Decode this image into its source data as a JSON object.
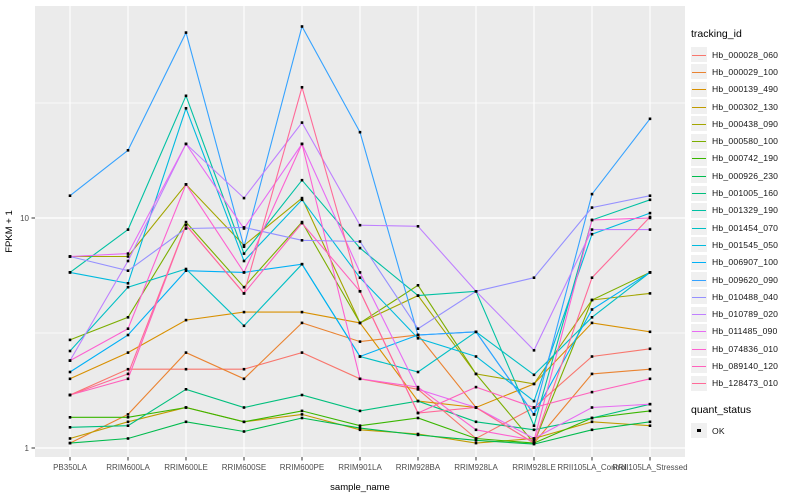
{
  "figure": {
    "background": "#FFFFFF",
    "panel_background": "#EBEBEB",
    "grid_color": "#FFFFFF",
    "axis_text_color": "#4D4D4D",
    "tick_mark_color": "#333333",
    "legend_key_background": "#F0F0F0"
  },
  "chart_data": {
    "type": "line",
    "title": "",
    "xlabel": "sample_name",
    "ylabel": "FPKM + 1",
    "y_scale": "log10",
    "grid": true,
    "legend_position": "right",
    "y_ticks": [
      {
        "label": "10",
        "value": 10
      },
      {
        "label": "1",
        "value": 1
      }
    ],
    "y_minor_values": [
      31.62,
      3.162
    ],
    "ylim": [
      0.91,
      83.5
    ],
    "categories": [
      "PB350LA",
      "RRIM600LA",
      "RRIM600LE",
      "RRIM600SE",
      "RRIM600PE",
      "RRIM901LA",
      "RRIM928BA",
      "RRIM928LA",
      "RRIM928LE",
      "RRII105LA_Control",
      "RRII105LA_Stressed"
    ],
    "points": {
      "shape": "square",
      "color": "#000000",
      "size": 2.6
    },
    "legend": {
      "title": "tracking_id"
    },
    "quant_legend": {
      "title": "quant_status",
      "items": [
        "OK"
      ],
      "marker_color": "#000000"
    },
    "series": [
      {
        "name": "Hb_000028_060",
        "color": "#F8766D",
        "values": [
          1.7,
          2.2,
          2.2,
          2.2,
          2.6,
          2.0,
          1.8,
          1.1,
          1.5,
          2.5,
          2.7
        ]
      },
      {
        "name": "Hb_000029_100",
        "color": "#EA8331",
        "values": [
          1.05,
          1.4,
          2.6,
          2.0,
          3.5,
          2.9,
          3.1,
          1.5,
          1.05,
          2.1,
          2.2
        ]
      },
      {
        "name": "Hb_000139_490",
        "color": "#D89000",
        "values": [
          2.0,
          2.6,
          3.6,
          3.9,
          3.9,
          3.5,
          1.6,
          1.5,
          1.9,
          3.5,
          3.2
        ]
      },
      {
        "name": "Hb_000302_130",
        "color": "#C09B00",
        "values": [
          1.1,
          1.3,
          1.5,
          1.3,
          1.4,
          1.2,
          1.15,
          1.05,
          1.1,
          1.3,
          1.25
        ]
      },
      {
        "name": "Hb_000438_090",
        "color": "#A3A500",
        "values": [
          6.8,
          6.8,
          14.0,
          7.6,
          12.2,
          3.5,
          4.6,
          2.1,
          1.9,
          4.4,
          4.7
        ]
      },
      {
        "name": "Hb_000580_100",
        "color": "#7CAE00",
        "values": [
          2.95,
          3.7,
          9.6,
          5.0,
          9.6,
          3.5,
          5.1,
          2.1,
          1.05,
          4.4,
          5.8
        ]
      },
      {
        "name": "Hb_000742_190",
        "color": "#39B600",
        "values": [
          1.36,
          1.36,
          1.5,
          1.3,
          1.45,
          1.25,
          1.35,
          1.1,
          1.05,
          1.35,
          1.45
        ]
      },
      {
        "name": "Hb_000926_230",
        "color": "#00BB4E",
        "values": [
          1.05,
          1.1,
          1.3,
          1.18,
          1.35,
          1.22,
          1.14,
          1.08,
          1.04,
          1.2,
          1.3
        ]
      },
      {
        "name": "Hb_001005_160",
        "color": "#00BF7D",
        "values": [
          1.23,
          1.25,
          1.8,
          1.5,
          1.7,
          1.45,
          1.6,
          1.3,
          1.2,
          1.35,
          1.55
        ]
      },
      {
        "name": "Hb_001329_190",
        "color": "#00C1A3",
        "values": [
          5.8,
          8.9,
          34.0,
          7.0,
          14.6,
          7.4,
          4.6,
          4.8,
          1.25,
          9.8,
          12.0
        ]
      },
      {
        "name": "Hb_001454_070",
        "color": "#00BFC4",
        "values": [
          2.64,
          5.0,
          6.0,
          3.4,
          6.3,
          2.5,
          2.14,
          3.2,
          2.08,
          3.7,
          5.8
        ]
      },
      {
        "name": "Hb_001545_050",
        "color": "#00BADE",
        "values": [
          5.8,
          5.2,
          30.0,
          6.5,
          12.0,
          5.5,
          3.0,
          2.5,
          1.6,
          8.5,
          10.5
        ]
      },
      {
        "name": "Hb_006907_100",
        "color": "#00B0F6",
        "values": [
          2.14,
          3.1,
          5.9,
          5.8,
          6.3,
          2.5,
          3.1,
          3.2,
          1.4,
          4.0,
          5.8
        ]
      },
      {
        "name": "Hb_009620_090",
        "color": "#35A2FF",
        "values": [
          12.5,
          19.7,
          64.0,
          7.5,
          68.0,
          23.6,
          3.1,
          3.2,
          1.4,
          12.7,
          27.0
        ]
      },
      {
        "name": "Hb_010488_040",
        "color": "#9590FF",
        "values": [
          6.8,
          5.9,
          9.0,
          9.1,
          8.0,
          7.9,
          3.3,
          4.8,
          5.5,
          11.1,
          12.5
        ]
      },
      {
        "name": "Hb_010789_020",
        "color": "#BF80FF",
        "values": [
          2.4,
          6.5,
          21.0,
          12.2,
          26.0,
          9.3,
          9.2,
          4.8,
          2.66,
          8.9,
          8.9
        ]
      },
      {
        "name": "Hb_011485_090",
        "color": "#E76BF3",
        "values": [
          6.8,
          7.0,
          21.0,
          9.0,
          21.0,
          5.8,
          1.8,
          1.5,
          1.1,
          1.5,
          1.55
        ]
      },
      {
        "name": "Hb_074836_010",
        "color": "#FD61D1",
        "values": [
          2.4,
          3.3,
          14.0,
          5.8,
          21.0,
          2.0,
          1.84,
          1.2,
          1.08,
          9.8,
          10.0
        ]
      },
      {
        "name": "Hb_089140_120",
        "color": "#FF62BC",
        "values": [
          1.7,
          2.0,
          9.3,
          4.7,
          9.5,
          4.8,
          1.42,
          1.84,
          1.5,
          1.75,
          2.0
        ]
      },
      {
        "name": "Hb_128473_010",
        "color": "#FF6A98",
        "values": [
          1.7,
          2.1,
          9.3,
          4.7,
          37.0,
          4.8,
          1.42,
          1.5,
          1.05,
          5.5,
          10.1
        ]
      }
    ]
  }
}
